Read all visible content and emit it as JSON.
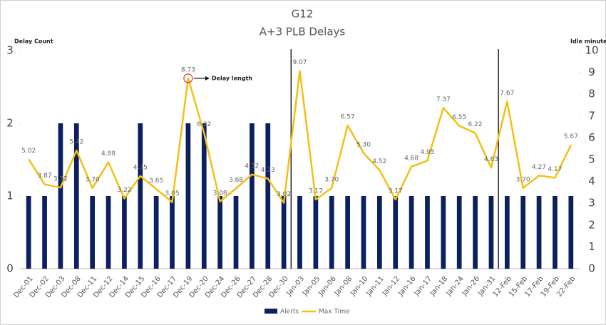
{
  "chart_data": {
    "type": "bar-line",
    "title": "G12",
    "subtitle": "A+3 PLB Delays",
    "y_label": "Delay Count",
    "y2_label": "Idle minutes",
    "annotation": "Delay length",
    "categories": [
      "Dec-01",
      "Dec-02",
      "Dec-03",
      "Dec-08",
      "Dec-11",
      "Dec-12",
      "Dec-14",
      "Dec-15",
      "Dec-16",
      "Dec-17",
      "Dec-19",
      "Dec-20",
      "Dec-24",
      "Dec-26",
      "Dec-27",
      "Dec-28",
      "Dec-30",
      "Jan-03",
      "Jan-05",
      "Jan-06",
      "Jan-08",
      "Jan-10",
      "Jan-11",
      "Jan-12",
      "Jan-16",
      "Jan-17",
      "Jan-18",
      "Jan-24",
      "Jan-26",
      "Jan-31",
      "12-Feb",
      "15-Feb",
      "17-Feb",
      "19-Feb",
      "22-Feb"
    ],
    "series": [
      {
        "name": "Alerts",
        "type": "bar",
        "color": "#0c1f5e",
        "values": [
          1,
          1,
          2,
          2,
          1,
          1,
          1,
          2,
          1,
          1,
          2,
          2,
          1,
          1,
          2,
          2,
          1,
          1,
          1,
          1,
          1,
          1,
          1,
          1,
          1,
          1,
          1,
          1,
          1,
          1,
          1,
          1,
          1,
          1,
          1
        ]
      },
      {
        "name": "Max Time",
        "type": "line",
        "axis": "y2",
        "color": "#f2c014",
        "values": [
          5.02,
          3.87,
          3.72,
          5.42,
          3.7,
          4.88,
          3.22,
          4.25,
          3.65,
          3.05,
          8.73,
          6.22,
          3.08,
          3.68,
          4.32,
          4.13,
          3.02,
          9.07,
          3.17,
          3.7,
          6.57,
          5.3,
          4.52,
          3.17,
          4.68,
          4.95,
          7.37,
          6.55,
          6.22,
          4.63,
          7.67,
          3.7,
          4.27,
          4.17,
          5.67
        ],
        "value_labels": [
          "5.02",
          "3.87",
          "3.72",
          "5.42",
          "3.70",
          "4.88",
          "3.22",
          "4.25",
          "3.65",
          "3.05",
          "8.73",
          "6.22",
          "3.08",
          "3.68",
          "4.32",
          "4.13",
          "3.02",
          "9.07",
          "3.17",
          "3.70",
          "6.57",
          "5.30",
          "4.52",
          "3.17",
          "4.68",
          "4.95",
          "7.37",
          "6.55",
          "6.22",
          "4.63",
          "7.67",
          "3.70",
          "4.27",
          "4.17",
          "5.67"
        ]
      }
    ],
    "ylim": [
      0,
      3
    ],
    "yticks": [
      0,
      1,
      2,
      3
    ],
    "y2lim": [
      0,
      10
    ],
    "y2ticks": [
      0,
      1,
      2,
      3,
      4,
      5,
      6,
      7,
      8,
      9,
      10
    ],
    "legend": "bottom"
  }
}
